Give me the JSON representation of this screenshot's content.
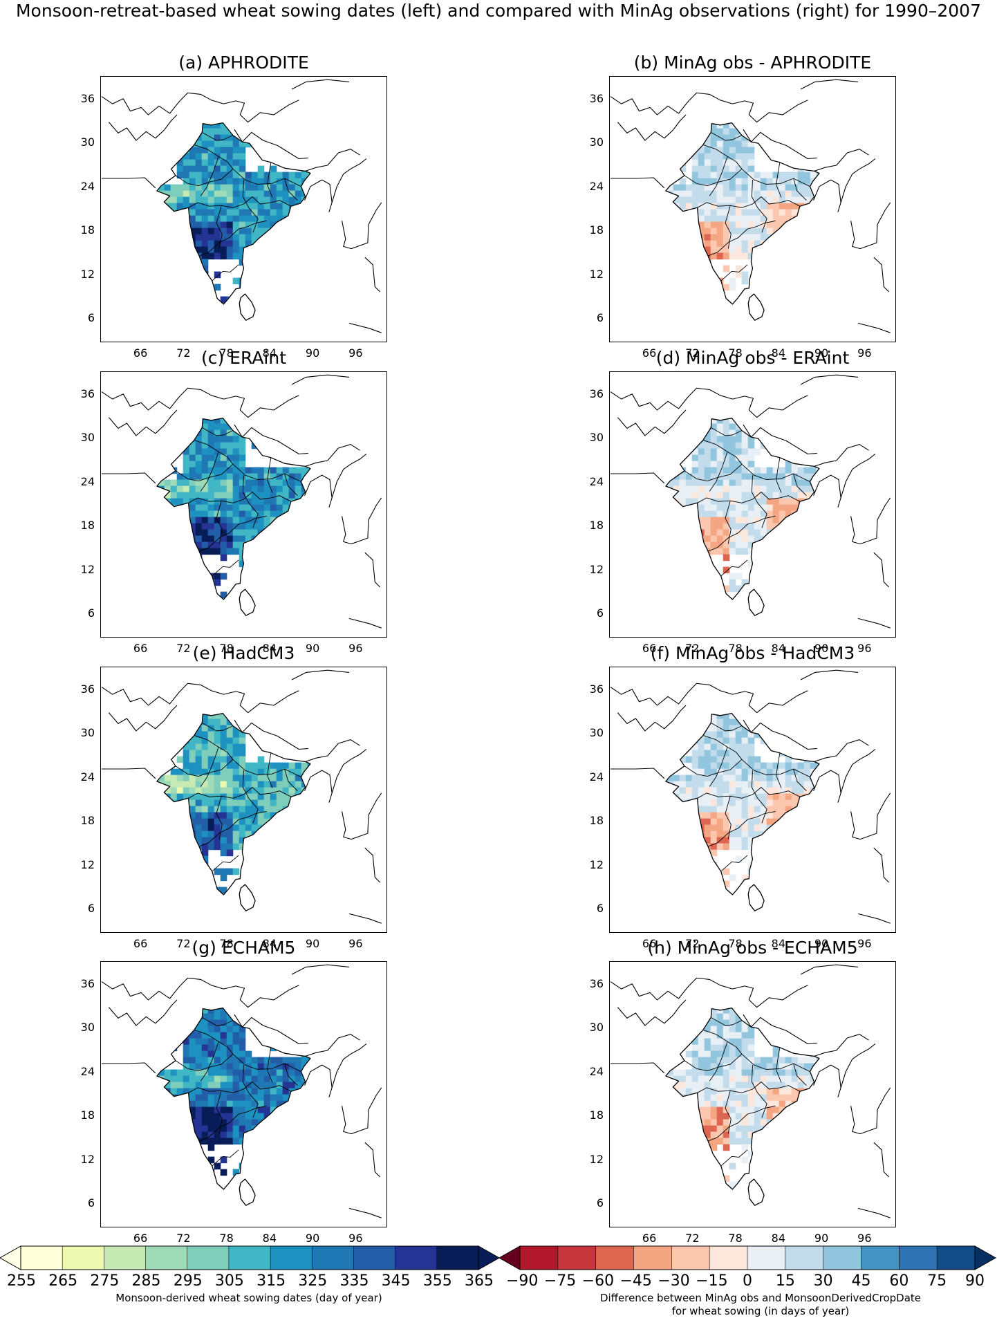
{
  "figure": {
    "title": "Monsoon-retreat-based wheat sowing dates (left) and compared with MinAg observations (right) for 1990–2007"
  },
  "lat_ticks": [
    "36",
    "30",
    "24",
    "18",
    "12",
    "6"
  ],
  "lon_ticks": [
    "66",
    "72",
    "78",
    "84",
    "90",
    "96"
  ],
  "panels": [
    {
      "id": "a",
      "title": "(a)  APHRODITE",
      "kind": "dates",
      "variant": 0
    },
    {
      "id": "b",
      "title": "(b)  MinAg obs - APHRODITE",
      "kind": "diff",
      "variant": 0
    },
    {
      "id": "c",
      "title": "(c)  ERAint",
      "kind": "dates",
      "variant": 1
    },
    {
      "id": "d",
      "title": "(d)  MinAg obs - ERAint",
      "kind": "diff",
      "variant": 1
    },
    {
      "id": "e",
      "title": "(e)  HadCM3",
      "kind": "dates",
      "variant": 2
    },
    {
      "id": "f",
      "title": "(f)  MinAg obs - HadCM3",
      "kind": "diff",
      "variant": 2
    },
    {
      "id": "g",
      "title": "(g)  ECHAM5",
      "kind": "dates",
      "variant": 3
    },
    {
      "id": "h",
      "title": "(h)  MinAg obs - ECHAM5",
      "kind": "diff",
      "variant": 3
    }
  ],
  "colorbar_dates": {
    "labels": [
      "255",
      "265",
      "275",
      "285",
      "295",
      "305",
      "315",
      "325",
      "335",
      "345",
      "355",
      "365"
    ],
    "colors": [
      "#ffffd9",
      "#edf8b1",
      "#c7e9b4",
      "#a0dbb8",
      "#7fcdbb",
      "#41b6c4",
      "#1d91c0",
      "#1f78b4",
      "#225ea8",
      "#253494",
      "#081d58"
    ],
    "extend_low": "#ffffe5",
    "extend_high": "#081d58",
    "title": "Monsoon-derived wheat sowing dates (day of year)"
  },
  "colorbar_diff": {
    "labels": [
      "−90",
      "−75",
      "−60",
      "−45",
      "−30",
      "−15",
      "0",
      "15",
      "30",
      "45",
      "60",
      "75",
      "90"
    ],
    "colors": [
      "#b2182b",
      "#c7363d",
      "#de6650",
      "#f4a582",
      "#fbc7ae",
      "#fde7dc",
      "#e8f0f6",
      "#c3dcec",
      "#92c5de",
      "#4393c3",
      "#2f73b3",
      "#134d89"
    ],
    "extend_low": "#67001f",
    "extend_high": "#053061",
    "title_line1": "Difference between MinAg obs and MonsoonDerivedCropDate",
    "title_line2": "for wheat sowing (in days of year)"
  }
}
